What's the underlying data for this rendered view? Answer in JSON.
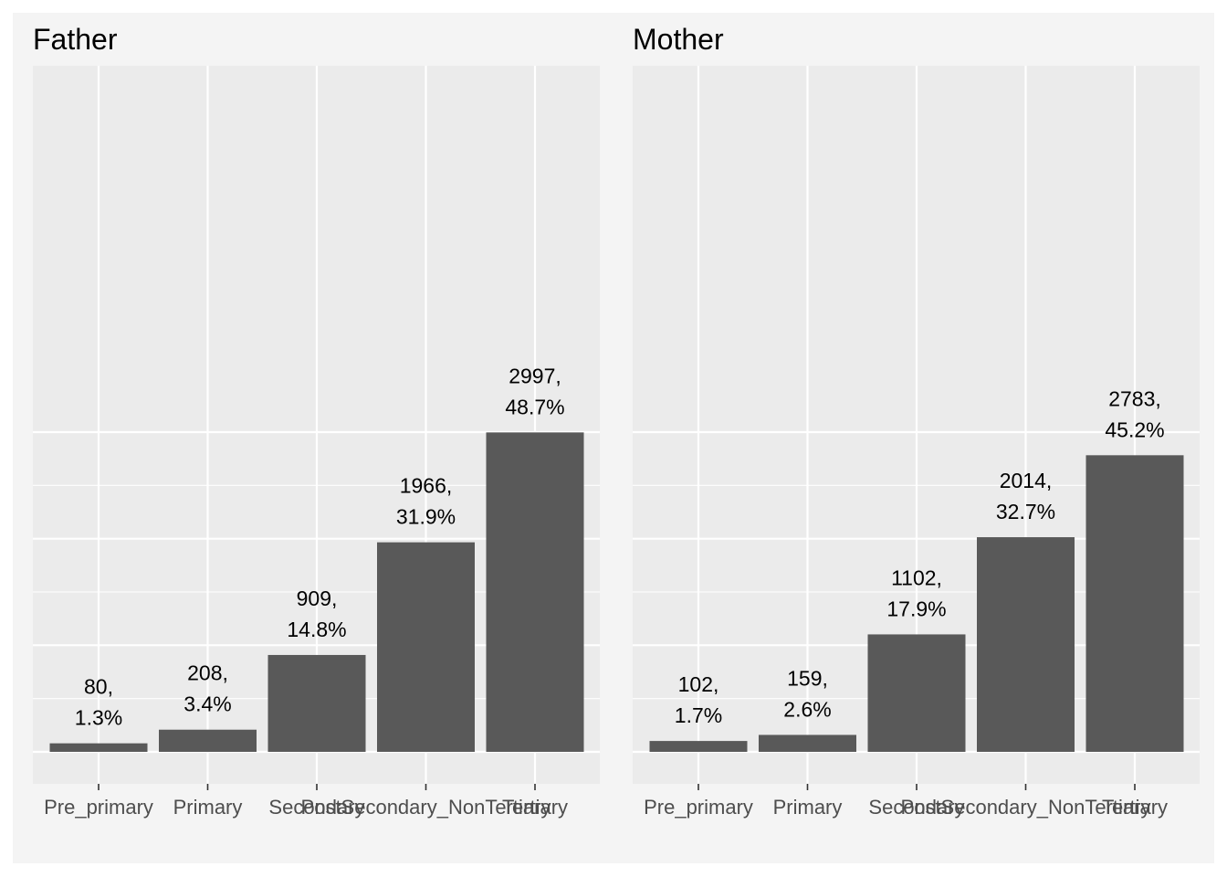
{
  "chart_data": {
    "type": "bar",
    "categories": [
      "Pre_primary",
      "Primary",
      "Secondary",
      "PostSecondary_NonTertiary",
      "Tertiary"
    ],
    "ylim": [
      0,
      3400
    ],
    "grid": true,
    "legend": "none",
    "colors": {
      "bar": "#595959",
      "panel": "#ebebeb",
      "plot_background": "#f4f4f4",
      "grid": "#ffffff"
    },
    "facets": [
      {
        "title": "Father",
        "values": [
          80,
          208,
          909,
          1966,
          2997
        ],
        "labels": [
          [
            "80,",
            "1.3%"
          ],
          [
            "208,",
            "3.4%"
          ],
          [
            "909,",
            "14.8%"
          ],
          [
            "1966,",
            "31.9%"
          ],
          [
            "2997,",
            "48.7%"
          ]
        ]
      },
      {
        "title": "Mother",
        "values": [
          102,
          159,
          1102,
          2014,
          2783
        ],
        "labels": [
          [
            "102,",
            "1.7%"
          ],
          [
            "159,",
            "2.6%"
          ],
          [
            "1102,",
            "17.9%"
          ],
          [
            "2014,",
            "32.7%"
          ],
          [
            "2783,",
            "45.2%"
          ]
        ]
      }
    ]
  }
}
